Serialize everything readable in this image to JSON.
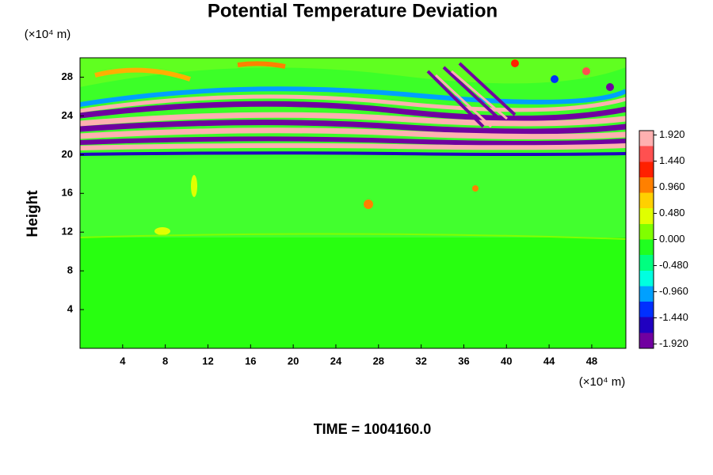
{
  "chart_data": {
    "type": "contour",
    "title": "Potential Temperature Deviation",
    "x_unit": "(×10⁴ m)",
    "y_unit": "(×10⁴ m)",
    "ylabel": "Height",
    "footer": "TIME = 1004160.0",
    "xlim": [
      0,
      51.2
    ],
    "ylim": [
      0,
      30
    ],
    "xticks": [
      4,
      8,
      12,
      16,
      20,
      24,
      28,
      32,
      36,
      40,
      44,
      48
    ],
    "yticks": [
      4,
      8,
      12,
      16,
      20,
      24,
      28
    ],
    "clim": [
      -2,
      2
    ],
    "cticks": [
      {
        "value": 1.92,
        "label": "1.920"
      },
      {
        "value": 1.44,
        "label": "1.440"
      },
      {
        "value": 0.96,
        "label": "0.960"
      },
      {
        "value": 0.48,
        "label": "0.480"
      },
      {
        "value": 0,
        "label": "0.000"
      },
      {
        "value": -0.48,
        "label": "-0.480"
      },
      {
        "value": -0.96,
        "label": "-0.960"
      },
      {
        "value": -1.44,
        "label": "-1.440"
      },
      {
        "value": -1.92,
        "label": "-1.920"
      }
    ],
    "colormap": [
      "#7000a0",
      "#2000c0",
      "#0030ff",
      "#00a0ff",
      "#00ffe0",
      "#00ff80",
      "#20ff20",
      "#80ff00",
      "#e0ff00",
      "#ffd000",
      "#ff8000",
      "#ff2000",
      "#ff5050",
      "#ffb0b0"
    ]
  }
}
